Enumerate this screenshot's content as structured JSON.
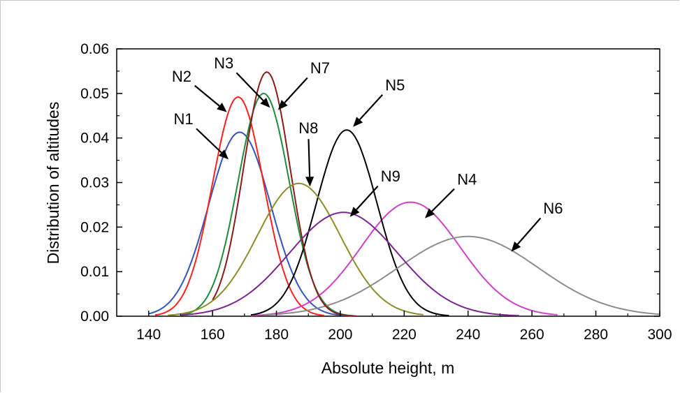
{
  "chart_data": {
    "type": "line",
    "title": "",
    "xlabel": "Absolute height, m",
    "ylabel": "Distribution of altitudes",
    "xlim": [
      130,
      300
    ],
    "ylim": [
      0,
      0.06
    ],
    "x_ticks": [
      "140",
      "160",
      "180",
      "200",
      "220",
      "240",
      "260",
      "280",
      "300"
    ],
    "y_ticks": [
      "0.00",
      "0.01",
      "0.02",
      "0.03",
      "0.04",
      "0.05",
      "0.06"
    ],
    "grid": false,
    "legend": "none",
    "series": [
      {
        "name": "N1",
        "color": "#3355bb",
        "peak_x": 168.5,
        "peak_y": 0.0413,
        "sigma": 9.7,
        "x_start": 140,
        "x_end": 205
      },
      {
        "name": "N2",
        "color": "#ff2020",
        "peak_x": 168.0,
        "peak_y": 0.0492,
        "sigma": 8.0,
        "x_start": 142,
        "x_end": 195
      },
      {
        "name": "N3",
        "color": "#1e8c3a",
        "peak_x": 176.0,
        "peak_y": 0.05,
        "sigma": 8.0,
        "x_start": 150,
        "x_end": 204
      },
      {
        "name": "N4",
        "color": "#d040c8",
        "peak_x": 222.0,
        "peak_y": 0.0256,
        "sigma": 15.5,
        "x_start": 172,
        "x_end": 268
      },
      {
        "name": "N5",
        "color": "#000000",
        "peak_x": 202.0,
        "peak_y": 0.0418,
        "sigma": 9.5,
        "x_start": 172,
        "x_end": 234
      },
      {
        "name": "N6",
        "color": "#8c8c8c",
        "peak_x": 240.0,
        "peak_y": 0.0179,
        "sigma": 22.0,
        "x_start": 176,
        "x_end": 300
      },
      {
        "name": "N7",
        "color": "#8b1a1a",
        "peak_x": 177.0,
        "peak_y": 0.0548,
        "sigma": 7.3,
        "x_start": 160,
        "x_end": 205
      },
      {
        "name": "N8",
        "color": "#8c8c28",
        "peak_x": 187.0,
        "peak_y": 0.0298,
        "sigma": 13.0,
        "x_start": 146,
        "x_end": 226
      },
      {
        "name": "N9",
        "color": "#7a2590",
        "peak_x": 201.0,
        "peak_y": 0.0233,
        "sigma": 17.0,
        "x_start": 150,
        "x_end": 256
      }
    ],
    "annotations": [
      {
        "text": "N1",
        "tip": [
          165,
          0.0352
        ]
      },
      {
        "text": "N2",
        "tip": [
          164.5,
          0.0458
        ]
      },
      {
        "text": "N3",
        "tip": [
          178,
          0.0468
        ]
      },
      {
        "text": "N7",
        "tip": [
          180.5,
          0.0463
        ]
      },
      {
        "text": "N8",
        "tip": [
          190.5,
          0.0291
        ]
      },
      {
        "text": "N5",
        "tip": [
          204,
          0.0425
        ]
      },
      {
        "text": "N9",
        "tip": [
          203,
          0.0223
        ]
      },
      {
        "text": "N4",
        "tip": [
          226.5,
          0.022
        ]
      },
      {
        "text": "N6",
        "tip": [
          253.5,
          0.0145
        ]
      }
    ]
  }
}
